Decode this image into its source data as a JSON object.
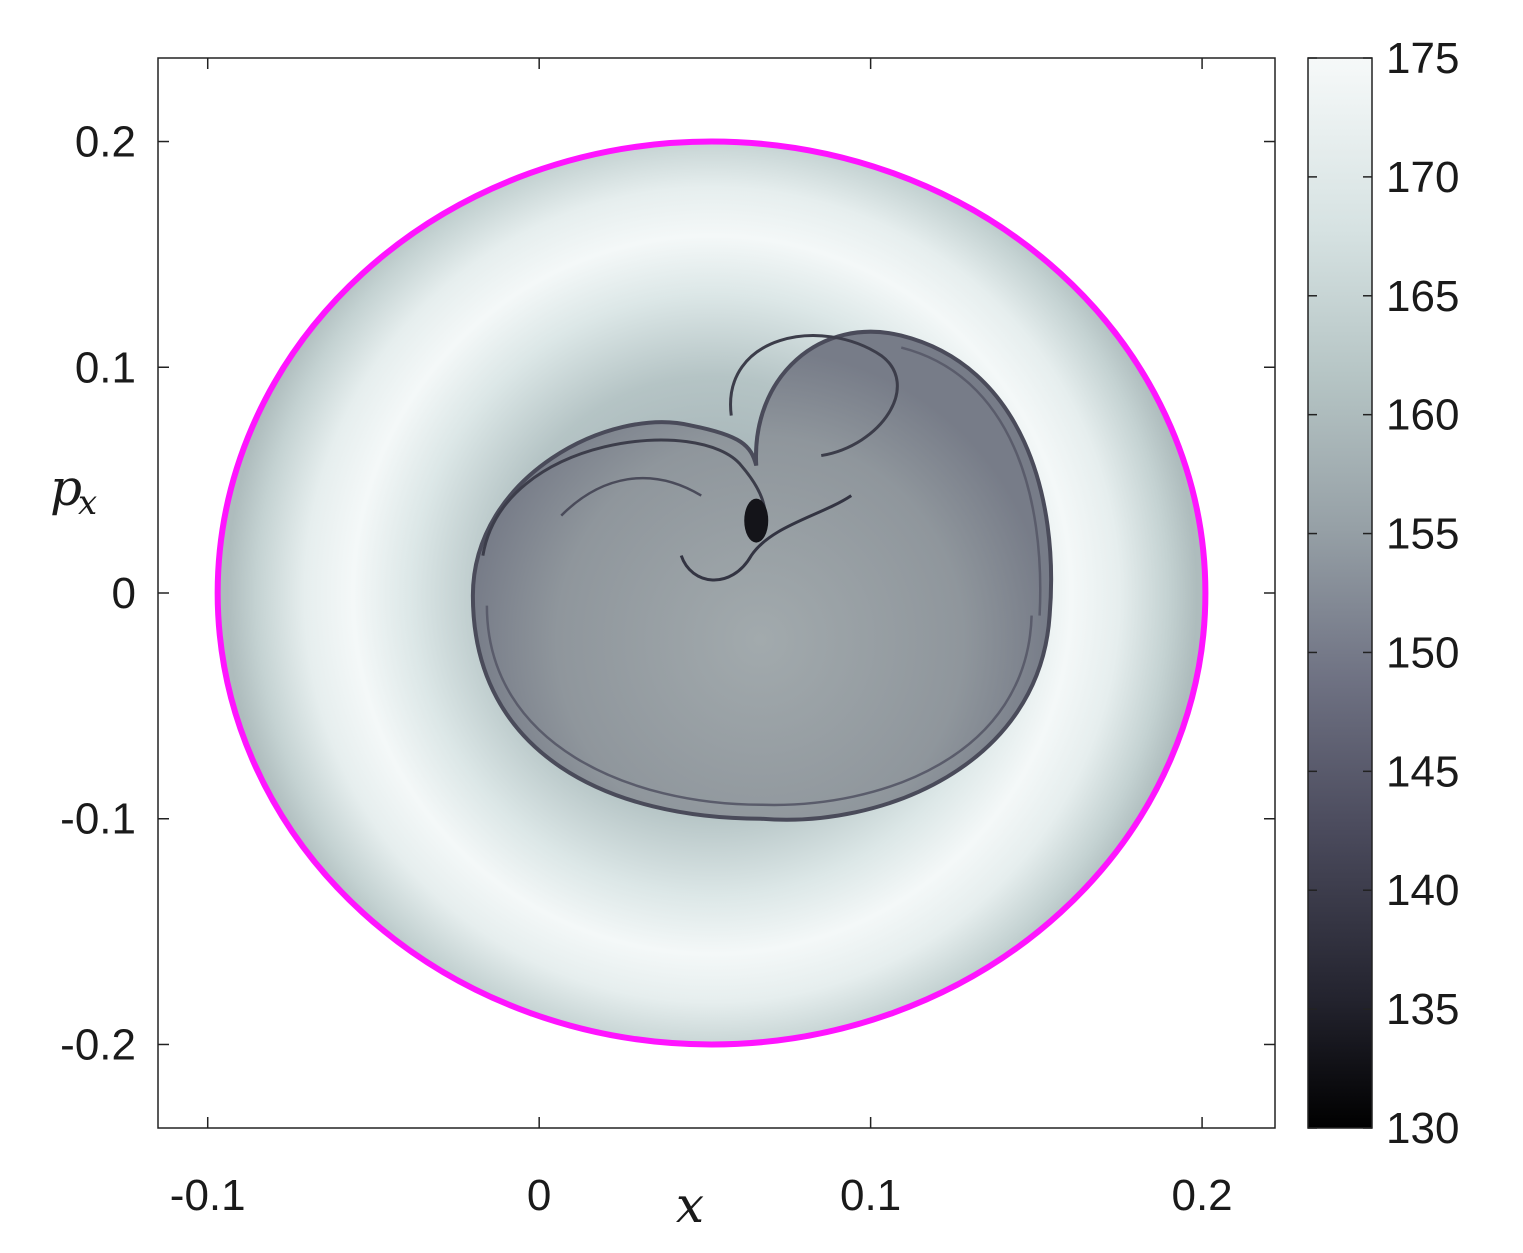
{
  "chart_data": {
    "type": "heatmap",
    "title": "",
    "xlabel": "x",
    "ylabel": "p_x",
    "xlim": [
      -0.115,
      0.222
    ],
    "ylim": [
      -0.237,
      0.237
    ],
    "xticks": [
      -0.1,
      0,
      0.1,
      0.2
    ],
    "xtick_labels": [
      "-0.1",
      "0",
      "0.1",
      "0.2"
    ],
    "yticks": [
      -0.2,
      -0.1,
      0,
      0.1,
      0.2
    ],
    "ytick_labels": [
      "-0.2",
      "-0.1",
      "0",
      "0.1",
      "0.2"
    ],
    "colorbar": {
      "min": 130,
      "max": 175,
      "ticks": [
        130,
        135,
        140,
        145,
        150,
        155,
        160,
        165,
        170,
        175
      ],
      "tick_labels": [
        "130",
        "135",
        "140",
        "145",
        "150",
        "155",
        "160",
        "165",
        "170",
        "175"
      ],
      "colors": [
        "#000000",
        "#2a2a36",
        "#4f4f61",
        "#75788a",
        "#9aa3aa",
        "#b9c6c7",
        "#d6e1e1",
        "#f2f7f7"
      ]
    },
    "boundary": {
      "color": "#ff14ff",
      "center": [
        0.052,
        0.0
      ],
      "radius_x": 0.149,
      "radius_y": 0.2
    },
    "inner_region": {
      "center": [
        0.067,
        -0.01
      ],
      "radius_x": 0.087,
      "radius_y": 0.09,
      "level": 157
    },
    "grid": false
  }
}
